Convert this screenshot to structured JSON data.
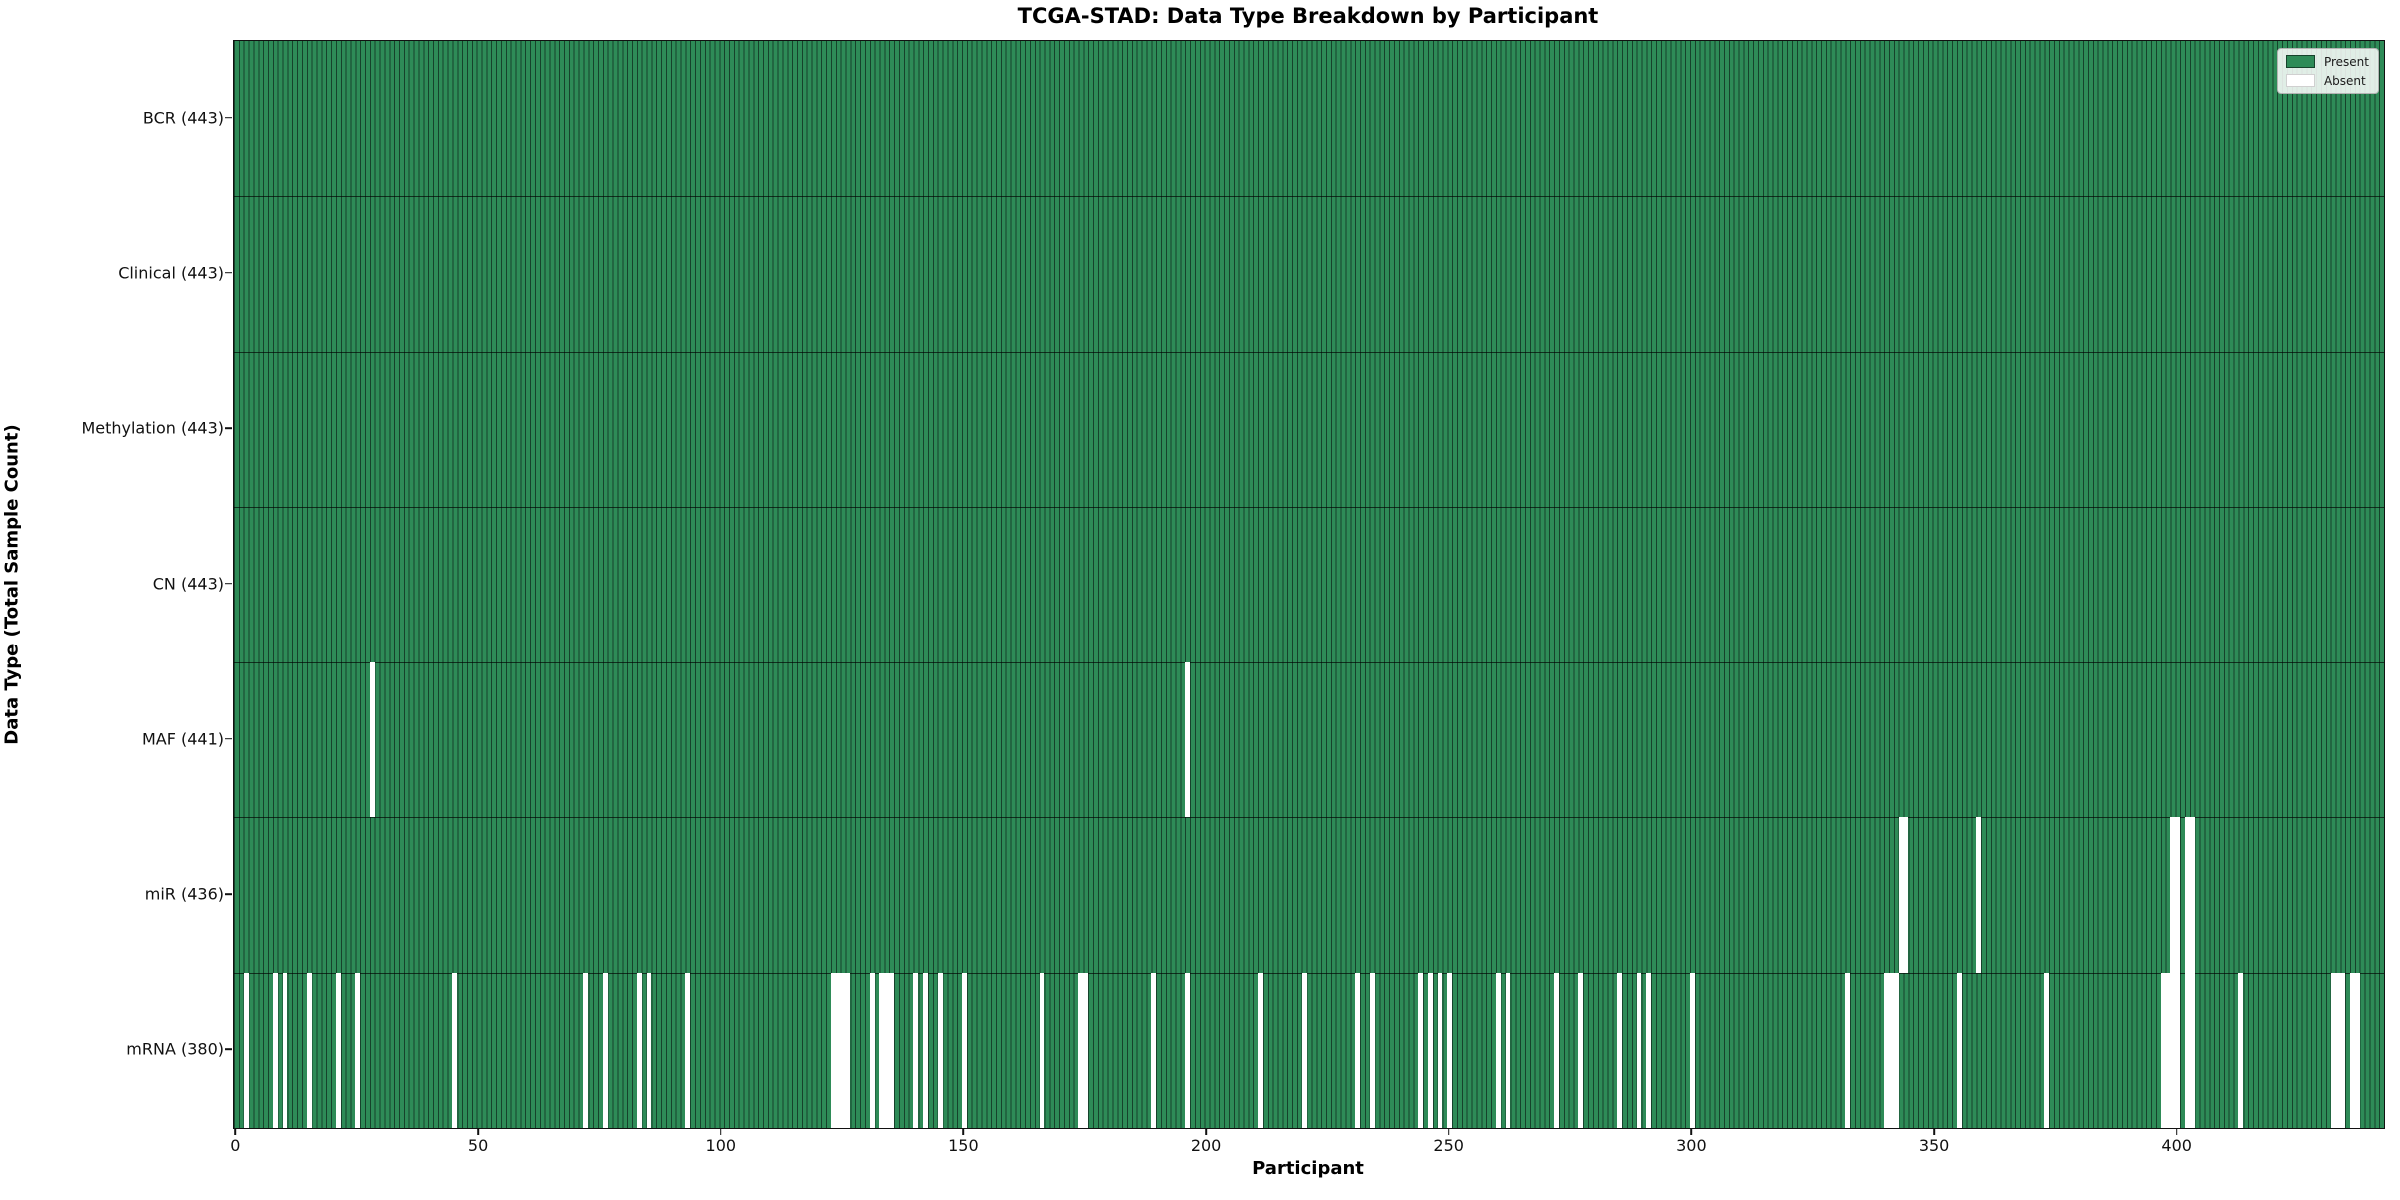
{
  "chart_data": {
    "type": "heatmap",
    "title": "TCGA-STAD: Data Type Breakdown by Participant",
    "xlabel": "Participant",
    "ylabel": "Data Type (Total Sample Count)",
    "n_participants": 443,
    "x_ticks": [
      0,
      50,
      100,
      150,
      200,
      250,
      300,
      350,
      400
    ],
    "xlim": [
      0,
      443
    ],
    "grid": false,
    "legend_position": "upper right",
    "legend": [
      {
        "label": "Present",
        "color": "#2e8b57"
      },
      {
        "label": "Absent",
        "color": "#ffffff"
      }
    ],
    "colors": {
      "present": "#2e8b57",
      "absent": "#ffffff",
      "bar_edge": "#16422b",
      "row_separator": "rgba(0,0,0,0.65)"
    },
    "rows": [
      {
        "label": "BCR",
        "total": 443,
        "display": "BCR (443)",
        "absent": []
      },
      {
        "label": "Clinical",
        "total": 443,
        "display": "Clinical (443)",
        "absent": []
      },
      {
        "label": "Methylation",
        "total": 443,
        "display": "Methylation (443)",
        "absent": []
      },
      {
        "label": "CN",
        "total": 443,
        "display": "CN (443)",
        "absent": []
      },
      {
        "label": "MAF",
        "total": 441,
        "display": "MAF (441)",
        "absent": [
          28,
          196
        ]
      },
      {
        "label": "miR",
        "total": 436,
        "display": "miR (436)",
        "absent": [
          343,
          344,
          359,
          399,
          400,
          402,
          403
        ]
      },
      {
        "label": "mRNA",
        "total": 380,
        "display": "mRNA (380)",
        "absent": [
          2,
          8,
          10,
          15,
          21,
          25,
          45,
          72,
          76,
          83,
          85,
          93,
          123,
          124,
          125,
          126,
          131,
          133,
          134,
          135,
          140,
          142,
          145,
          150,
          166,
          174,
          175,
          189,
          196,
          211,
          220,
          231,
          234,
          244,
          246,
          248,
          250,
          260,
          262,
          272,
          277,
          285,
          289,
          291,
          300,
          332,
          340,
          341,
          342,
          355,
          373,
          397,
          398,
          399,
          400,
          402,
          403,
          413,
          432,
          433,
          434,
          436,
          437
        ]
      }
    ]
  }
}
